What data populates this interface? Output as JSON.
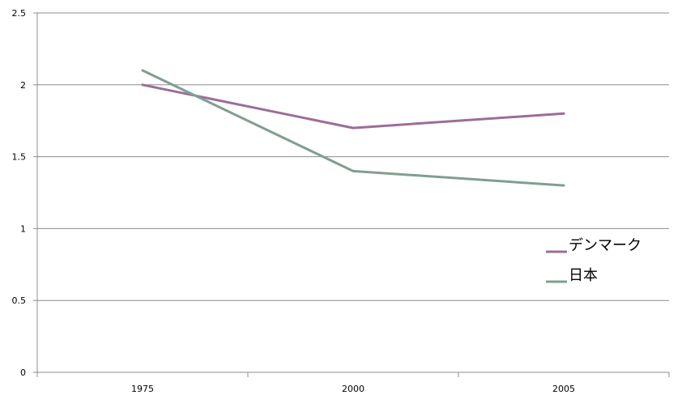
{
  "chart_data": {
    "type": "line",
    "title": "",
    "xlabel": "",
    "ylabel": "",
    "categories": [
      "1975",
      "2000",
      "2005"
    ],
    "series": [
      {
        "name": "デンマーク",
        "values": [
          2.0,
          1.7,
          1.8
        ],
        "color": "#9B6D9B"
      },
      {
        "name": "日本",
        "values": [
          2.1,
          1.4,
          1.3
        ],
        "color": "#7F9F8F"
      }
    ],
    "ylim": [
      0,
      2.5
    ],
    "yticks": [
      "0",
      "0.5",
      "1",
      "1.5",
      "2",
      "2.5"
    ],
    "grid": true,
    "legend_position": "right",
    "colors": {
      "grid": "#8C8C8C",
      "axis": "#8C8C8C",
      "background": "#FFFFFF"
    }
  }
}
